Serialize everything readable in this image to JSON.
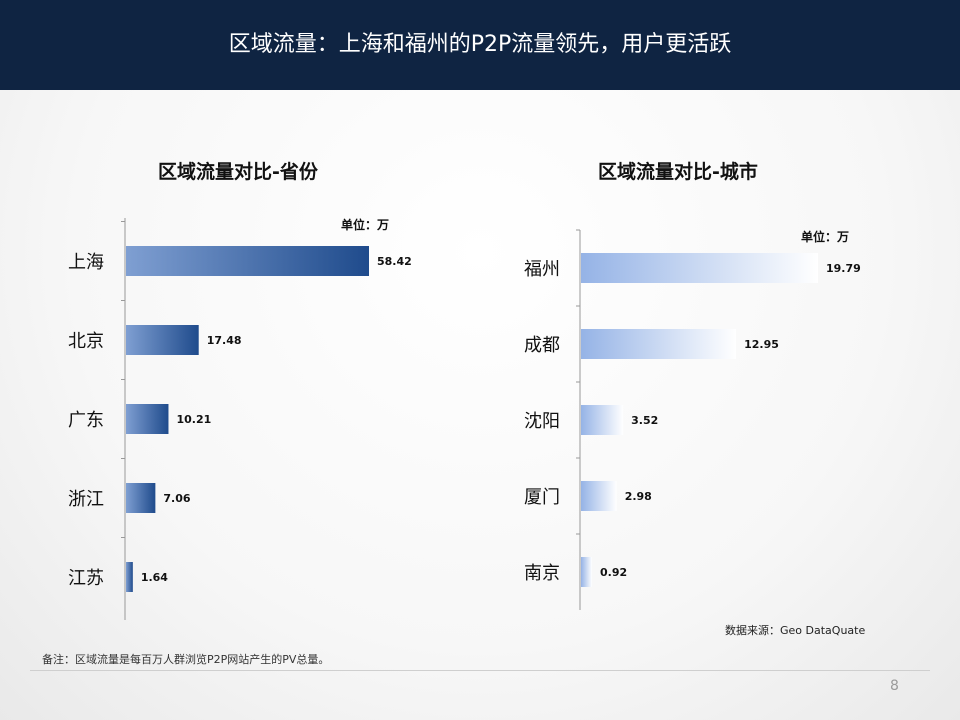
{
  "header": {
    "title": "区域流量：上海和福州的P2P流量领先，用户更活跃"
  },
  "chart_data": [
    {
      "type": "bar",
      "orientation": "horizontal",
      "title": "区域流量对比-省份",
      "unit_label": "单位：万",
      "categories": [
        "上海",
        "北京",
        "广东",
        "浙江",
        "江苏"
      ],
      "values": [
        58.42,
        17.48,
        10.21,
        7.06,
        1.64
      ],
      "xlim": [
        0,
        60
      ],
      "grid": false,
      "fill": "gradient-dark-blue",
      "colors": [
        "#7f9fd2",
        "#1f4b8c"
      ]
    },
    {
      "type": "bar",
      "orientation": "horizontal",
      "title": "区域流量对比-城市",
      "unit_label": "单位：万",
      "categories": [
        "福州",
        "成都",
        "沈阳",
        "厦门",
        "南京"
      ],
      "values": [
        19.79,
        12.95,
        3.52,
        2.98,
        0.92
      ],
      "xlim": [
        0,
        20
      ],
      "grid": false,
      "fill": "gradient-light-blue",
      "colors": [
        "#95b3e6",
        "#ffffff"
      ]
    }
  ],
  "source": "数据来源：Geo  DataQuate",
  "note": "备注：区域流量是每百万人群浏览P2P网站产生的PV总量。",
  "page_number": "8"
}
